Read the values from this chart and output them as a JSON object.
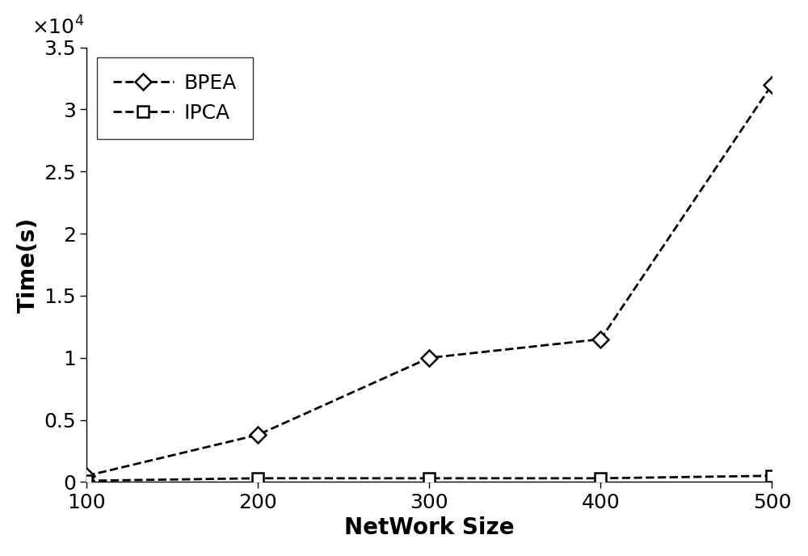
{
  "x": [
    100,
    200,
    300,
    400,
    500
  ],
  "bpea_y": [
    500,
    3800,
    10000,
    11500,
    32000
  ],
  "ipca_y": [
    100,
    300,
    300,
    300,
    500
  ],
  "bpea_label": "BPEA",
  "ipca_label": "IPCA",
  "xlabel": "NetWork Size",
  "ylabel": "Time(s)",
  "xlim": [
    100,
    500
  ],
  "ylim": [
    0,
    35000
  ],
  "yticks": [
    0,
    5000,
    10000,
    15000,
    20000,
    25000,
    30000,
    35000
  ],
  "xticks": [
    100,
    200,
    300,
    400,
    500
  ],
  "line_color": "#000000",
  "line_style": "--",
  "line_width": 2.0,
  "marker_size": 10,
  "legend_fontsize": 18,
  "axis_label_fontsize": 20,
  "tick_fontsize": 18,
  "background_color": "#ffffff",
  "scale_factor": 10000
}
